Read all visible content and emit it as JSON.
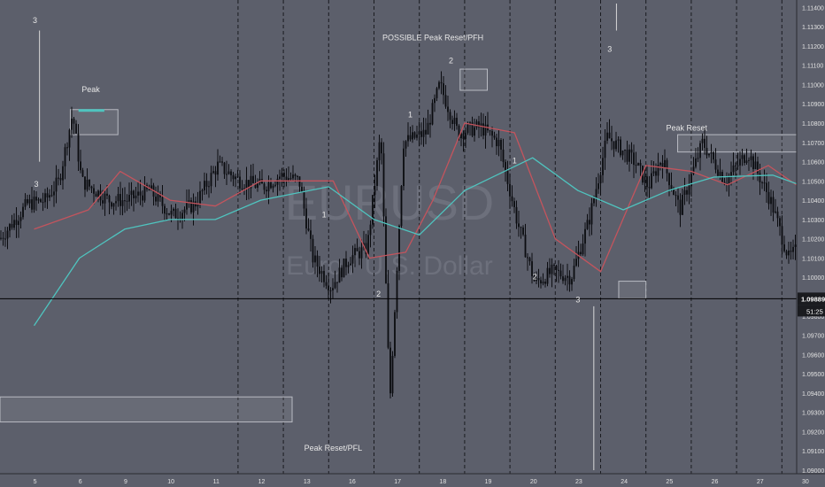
{
  "colors": {
    "background": "#5c5f6b",
    "axis_panel": "#5c5f6b",
    "candle": "#0b0c10",
    "ema_fast": "#c4545d",
    "ema_slow": "#4fc4bf",
    "grid": "#1a1b20",
    "text": "#e6e6e6",
    "axis_text": "#e2e2e2",
    "price_line": "#000000",
    "price_tag_bg": "#1a1b1f",
    "watermark": "#6d707c"
  },
  "watermark": {
    "symbol": "EURUSD",
    "name": "Euro / U.S. Dollar"
  },
  "chart_data": {
    "type": "candlestick",
    "x_axis_labels": [
      "5",
      "6",
      "9",
      "10",
      "11",
      "12",
      "13",
      "16",
      "17",
      "18",
      "19",
      "20",
      "23",
      "24",
      "25",
      "26",
      "27",
      "30"
    ],
    "y_axis_labels": [
      "1.11400",
      "1.11300",
      "1.11200",
      "1.11100",
      "1.11000",
      "1.10900",
      "1.10800",
      "1.10700",
      "1.10600",
      "1.10500",
      "1.10400",
      "1.10300",
      "1.10200",
      "1.10100",
      "1.10000",
      "1.09900",
      "1.09800",
      "1.09700",
      "1.09600",
      "1.09500",
      "1.09400",
      "1.09300",
      "1.09200",
      "1.09100",
      "1.09000"
    ],
    "ylim": [
      1.09,
      1.1142
    ],
    "last_price": "1.09889",
    "countdown": "51:25",
    "session_dividers": [
      "4.5",
      "5.5",
      "6.5",
      "7.5",
      "8.5",
      "9.5",
      "10.5",
      "11.5",
      "12.5",
      "13.5",
      "14.5",
      "15.5",
      "16.5",
      "17.5",
      "18.5",
      "19.5",
      "20.5",
      "21.5",
      "22.5",
      "23.5"
    ],
    "price_path": [
      {
        "x": 0,
        "y": 1.102
      },
      {
        "x": 0.6,
        "y": 1.1038
      },
      {
        "x": 1.0,
        "y": 1.104
      },
      {
        "x": 1.3,
        "y": 1.105
      },
      {
        "x": 1.6,
        "y": 1.1085
      },
      {
        "x": 1.8,
        "y": 1.105
      },
      {
        "x": 2.4,
        "y": 1.104
      },
      {
        "x": 2.8,
        "y": 1.104
      },
      {
        "x": 3.3,
        "y": 1.1045
      },
      {
        "x": 3.8,
        "y": 1.1032
      },
      {
        "x": 4.3,
        "y": 1.1038
      },
      {
        "x": 4.8,
        "y": 1.1058
      },
      {
        "x": 5.3,
        "y": 1.105
      },
      {
        "x": 5.8,
        "y": 1.1047
      },
      {
        "x": 6.2,
        "y": 1.1053
      },
      {
        "x": 6.6,
        "y": 1.105
      },
      {
        "x": 6.9,
        "y": 1.101
      },
      {
        "x": 7.3,
        "y": 1.0995
      },
      {
        "x": 7.7,
        "y": 1.101
      },
      {
        "x": 8.1,
        "y": 1.1015
      },
      {
        "x": 8.4,
        "y": 1.1075
      },
      {
        "x": 8.6,
        "y": 1.0935
      },
      {
        "x": 8.9,
        "y": 1.107
      },
      {
        "x": 9.4,
        "y": 1.1075
      },
      {
        "x": 9.7,
        "y": 1.11
      },
      {
        "x": 10.1,
        "y": 1.1075
      },
      {
        "x": 10.6,
        "y": 1.1078
      },
      {
        "x": 11.0,
        "y": 1.107
      },
      {
        "x": 11.4,
        "y": 1.103
      },
      {
        "x": 11.8,
        "y": 1.0997
      },
      {
        "x": 12.2,
        "y": 1.1003
      },
      {
        "x": 12.6,
        "y": 1.1
      },
      {
        "x": 13.0,
        "y": 1.103
      },
      {
        "x": 13.4,
        "y": 1.1073
      },
      {
        "x": 14.0,
        "y": 1.106
      },
      {
        "x": 14.3,
        "y": 1.1047
      },
      {
        "x": 14.6,
        "y": 1.1062
      },
      {
        "x": 15.0,
        "y": 1.1035
      },
      {
        "x": 15.5,
        "y": 1.107
      },
      {
        "x": 16.0,
        "y": 1.105
      },
      {
        "x": 16.5,
        "y": 1.1065
      },
      {
        "x": 17.0,
        "y": 1.104
      },
      {
        "x": 17.4,
        "y": 1.101
      },
      {
        "x": 17.9,
        "y": 1.1022
      },
      {
        "x": 18.2,
        "y": 1.102
      },
      {
        "x": 18.4,
        "y": 1.0975
      },
      {
        "x": 18.8,
        "y": 1.0985
      },
      {
        "x": 19.2,
        "y": 1.0988
      },
      {
        "x": 19.5,
        "y": 1.0989
      }
    ],
    "ema_fast": [
      {
        "x": 0,
        "y": 1.1025
      },
      {
        "x": 1.2,
        "y": 1.1035
      },
      {
        "x": 1.9,
        "y": 1.1055
      },
      {
        "x": 3.0,
        "y": 1.104
      },
      {
        "x": 4.0,
        "y": 1.1037
      },
      {
        "x": 5.0,
        "y": 1.105
      },
      {
        "x": 6.6,
        "y": 1.105
      },
      {
        "x": 7.4,
        "y": 1.101
      },
      {
        "x": 8.2,
        "y": 1.1013
      },
      {
        "x": 8.8,
        "y": 1.104
      },
      {
        "x": 9.5,
        "y": 1.108
      },
      {
        "x": 10.6,
        "y": 1.1075
      },
      {
        "x": 11.5,
        "y": 1.102
      },
      {
        "x": 12.5,
        "y": 1.1003
      },
      {
        "x": 13.5,
        "y": 1.1058
      },
      {
        "x": 14.5,
        "y": 1.1055
      },
      {
        "x": 15.3,
        "y": 1.1048
      },
      {
        "x": 16.2,
        "y": 1.1058
      },
      {
        "x": 17.0,
        "y": 1.1045
      },
      {
        "x": 17.8,
        "y": 1.1015
      },
      {
        "x": 18.5,
        "y": 1.1
      },
      {
        "x": 19.5,
        "y": 1.0989
      }
    ],
    "ema_slow": [
      {
        "x": 0,
        "y": 1.0975
      },
      {
        "x": 1.0,
        "y": 1.101
      },
      {
        "x": 2.0,
        "y": 1.1025
      },
      {
        "x": 3.0,
        "y": 1.103
      },
      {
        "x": 4.0,
        "y": 1.103
      },
      {
        "x": 5.0,
        "y": 1.104
      },
      {
        "x": 6.5,
        "y": 1.1047
      },
      {
        "x": 7.5,
        "y": 1.103
      },
      {
        "x": 8.5,
        "y": 1.1022
      },
      {
        "x": 9.5,
        "y": 1.1045
      },
      {
        "x": 11.0,
        "y": 1.1062
      },
      {
        "x": 12.0,
        "y": 1.1045
      },
      {
        "x": 13.0,
        "y": 1.1035
      },
      {
        "x": 14.0,
        "y": 1.1045
      },
      {
        "x": 15.0,
        "y": 1.1052
      },
      {
        "x": 16.3,
        "y": 1.1053
      },
      {
        "x": 17.0,
        "y": 1.1047
      },
      {
        "x": 18.3,
        "y": 1.1035
      },
      {
        "x": 19.5,
        "y": 1.1015
      }
    ],
    "zones": [
      {
        "x0": 0.8,
        "x1": 1.85,
        "y0": 1.1087,
        "y1": 1.1074,
        "level": 1.1087,
        "label": "Peak"
      },
      {
        "x0": 9.4,
        "x1": 10.0,
        "y0": 1.1108,
        "y1": 1.1097,
        "label": "POSSIBLE Peak Reset/PFH"
      },
      {
        "x0": 14.2,
        "x1": 17.0,
        "y0": 1.1074,
        "y1": 1.1065,
        "label": "Peak Reset"
      },
      {
        "x0": 12.9,
        "x1": 13.5,
        "y0": 1.0998,
        "y1": 1.0989,
        "label": ""
      },
      {
        "x0": 0,
        "x1": 9.5,
        "y0": 1.0938,
        "y1": 1.0925,
        "label": "Peak Reset/PFL"
      }
    ],
    "annotations": [
      {
        "text": "3",
        "x": 0.02,
        "y": 1.1132
      },
      {
        "text": "3",
        "x": 0.05,
        "y": 1.1047
      },
      {
        "text": "Peak",
        "x": 1.25,
        "y": 1.1096
      },
      {
        "text": "1",
        "x": 6.4,
        "y": 1.1031
      },
      {
        "text": "2",
        "x": 7.6,
        "y": 1.099
      },
      {
        "text": "1",
        "x": 8.3,
        "y": 1.1083
      },
      {
        "text": "POSSIBLE Peak Reset/PFH",
        "x": 8.8,
        "y": 1.1123
      },
      {
        "text": "2",
        "x": 9.2,
        "y": 1.1111
      },
      {
        "text": "1",
        "x": 10.6,
        "y": 1.1059
      },
      {
        "text": "3",
        "x": 12.7,
        "y": 1.1117
      },
      {
        "text": "2",
        "x": 11.05,
        "y": 1.0999
      },
      {
        "text": "3",
        "x": 12.0,
        "y": 1.0987
      },
      {
        "text": "Peak Reset",
        "x": 14.4,
        "y": 1.1076
      },
      {
        "text": "1",
        "x": 16.9,
        "y": 1.1003
      },
      {
        "text": "2",
        "x": 17.8,
        "y": 1.097
      },
      {
        "text": "3",
        "x": 18.2,
        "y": 1.0944
      },
      {
        "text": "Peak Reset/PFL",
        "x": 6.6,
        "y": 1.091
      }
    ],
    "vertical_markers": [
      {
        "x": 0.12,
        "y0": 1.1128,
        "y1": 1.106
      },
      {
        "x": 12.85,
        "y0": 1.1142,
        "y1": 1.1128
      },
      {
        "x": 12.35,
        "y0": 1.0985,
        "y1": 1.09
      },
      {
        "x": 18.25,
        "y0": 1.094,
        "y1": 1.09
      }
    ]
  }
}
